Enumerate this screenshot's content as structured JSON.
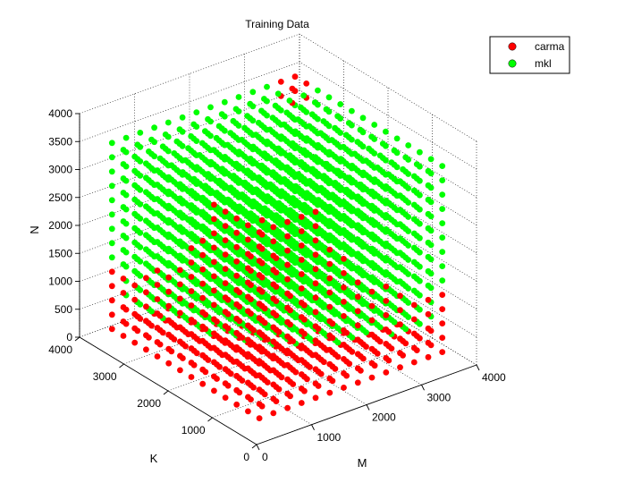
{
  "chart_data": {
    "type": "scatter",
    "title": "Training Data",
    "xlabel": "M",
    "ylabel": "K",
    "zlabel": "N",
    "xlim": [
      0,
      4000
    ],
    "ylim": [
      0,
      4000
    ],
    "zlim": [
      0,
      4000
    ],
    "xticks": [
      "0",
      "1000",
      "2000",
      "3000",
      "4000"
    ],
    "yticks": [
      "0",
      "1000",
      "2000",
      "3000",
      "4000"
    ],
    "zticks": [
      "0",
      "500",
      "1000",
      "1500",
      "2000",
      "2500",
      "3000",
      "3500",
      "4000"
    ],
    "grid": true,
    "legend_position": "top-right",
    "grid_values": [
      256,
      512,
      768,
      1024,
      1280,
      1536,
      1792,
      2048,
      2304,
      2560,
      2816,
      3072,
      3328,
      3584
    ],
    "rule": "Points lie on a regular 3D grid (M, K, N each taking grid_values); carma wins when M*K*N is at most 1.2e9 or when all three dimensions are at least 3300, mkl wins otherwise.",
    "series": [
      {
        "name": "carma",
        "color": "#ff0000"
      },
      {
        "name": "mkl",
        "color": "#00ff00"
      }
    ]
  }
}
